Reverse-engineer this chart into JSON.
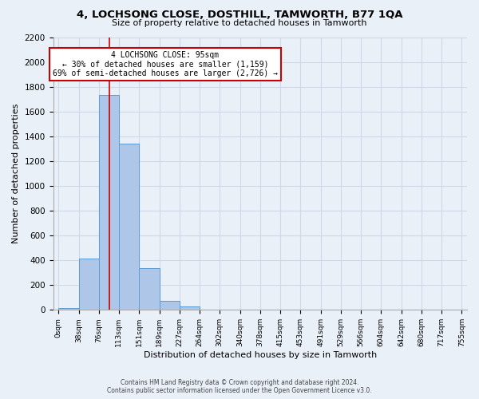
{
  "title": "4, LOCHSONG CLOSE, DOSTHILL, TAMWORTH, B77 1QA",
  "subtitle": "Size of property relative to detached houses in Tamworth",
  "xlabel": "Distribution of detached houses by size in Tamworth",
  "ylabel": "Number of detached properties",
  "bar_edges": [
    0,
    38,
    76,
    113,
    151,
    189,
    227,
    264,
    302,
    340,
    378,
    415,
    453,
    491,
    529,
    566,
    604,
    642,
    680,
    717,
    755
  ],
  "bar_heights": [
    15,
    415,
    1735,
    1340,
    340,
    75,
    25,
    5,
    0,
    0,
    0,
    0,
    0,
    0,
    0,
    0,
    0,
    0,
    0,
    0
  ],
  "tick_labels": [
    "0sqm",
    "38sqm",
    "76sqm",
    "113sqm",
    "151sqm",
    "189sqm",
    "227sqm",
    "264sqm",
    "302sqm",
    "340sqm",
    "378sqm",
    "415sqm",
    "453sqm",
    "491sqm",
    "529sqm",
    "566sqm",
    "604sqm",
    "642sqm",
    "680sqm",
    "717sqm",
    "755sqm"
  ],
  "bar_color": "#aec6e8",
  "bar_edge_color": "#5b9bd5",
  "vline_x": 95,
  "vline_color": "#cc0000",
  "annotation_title": "4 LOCHSONG CLOSE: 95sqm",
  "annotation_line1": "← 30% of detached houses are smaller (1,159)",
  "annotation_line2": "69% of semi-detached houses are larger (2,726) →",
  "annotation_box_color": "#ffffff",
  "annotation_box_edgecolor": "#cc0000",
  "ylim": [
    0,
    2200
  ],
  "yticks": [
    0,
    200,
    400,
    600,
    800,
    1000,
    1200,
    1400,
    1600,
    1800,
    2000,
    2200
  ],
  "grid_color": "#d0d8e8",
  "bg_color": "#eaf0f8",
  "footer1": "Contains HM Land Registry data © Crown copyright and database right 2024.",
  "footer2": "Contains public sector information licensed under the Open Government Licence v3.0."
}
